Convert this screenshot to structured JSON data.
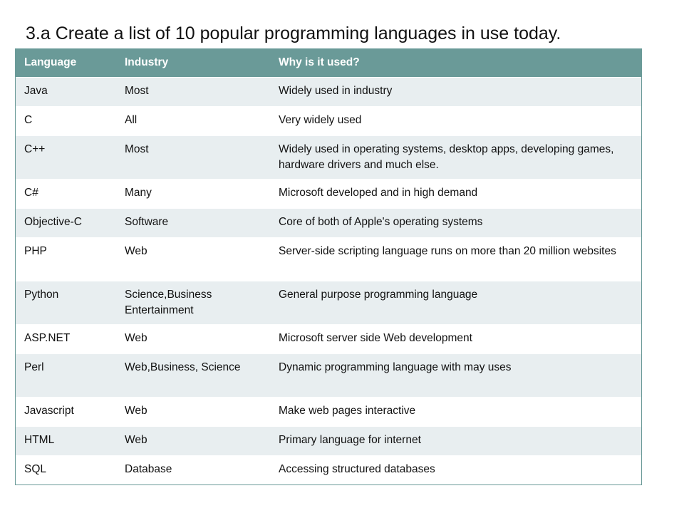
{
  "title": "3.a Create a list of 10 popular programming languages in use today.",
  "table": {
    "headers": [
      "Language",
      "Industry",
      "Why is it used?"
    ],
    "rows": [
      {
        "language": "Java",
        "industry": "Most",
        "why": "Widely used in industry"
      },
      {
        "language": "C",
        "industry": "All",
        "why": "Very widely used"
      },
      {
        "language": "C++",
        "industry": "Most",
        "why": "Widely used in operating systems,  desktop apps, developing games, hardware drivers and much else."
      },
      {
        "language": "C#",
        "industry": "Many",
        "why": "Microsoft developed and in high demand"
      },
      {
        "language": "Objective-C",
        "industry": "Software",
        "why": "Core of both of Apple's operating systems"
      },
      {
        "language": "PHP",
        "industry": "Web",
        "why": "Server-side scripting language runs on more than 20 million websites"
      },
      {
        "language": "Python",
        "industry": "Science,Business Entertainment",
        "why": "General purpose programming language"
      },
      {
        "language": "ASP.NET",
        "industry": "Web",
        "why": "Microsoft server side Web development"
      },
      {
        "language": "Perl",
        "industry": "Web,Business, Science",
        "why": "Dynamic programming language with may uses"
      },
      {
        "language": "Javascript",
        "industry": "Web",
        "why": "Make web pages interactive"
      },
      {
        "language": "HTML",
        "industry": "Web",
        "why": "Primary  language for internet"
      },
      {
        "language": "SQL",
        "industry": "Database",
        "why": "Accessing structured databases"
      }
    ]
  },
  "colors": {
    "header_background": "#6a9a98",
    "header_text": "#ffffff",
    "band_row": "#e8eef0",
    "plain_row": "#ffffff"
  }
}
